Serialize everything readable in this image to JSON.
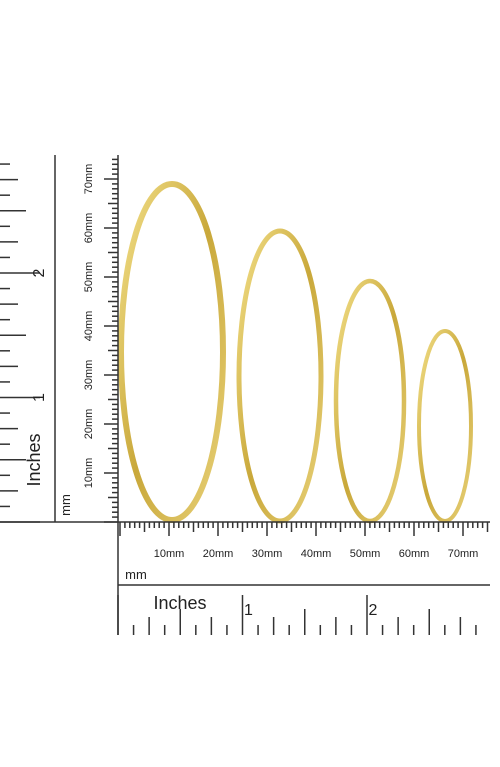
{
  "vertical_ruler": {
    "unit_label": "Inches",
    "inch_numbers": [
      "1",
      "2"
    ],
    "mm_unit_label": "mm",
    "mm_labels": [
      "10mm",
      "20mm",
      "30mm",
      "40mm",
      "50mm",
      "60mm",
      "70mm"
    ]
  },
  "horizontal_ruler": {
    "mm_unit_label": "mm",
    "mm_labels": [
      "10mm",
      "20mm",
      "30mm",
      "40mm",
      "50mm",
      "60mm",
      "70mm"
    ],
    "unit_label": "Inches",
    "inch_numbers": [
      "1",
      "2"
    ]
  }
}
